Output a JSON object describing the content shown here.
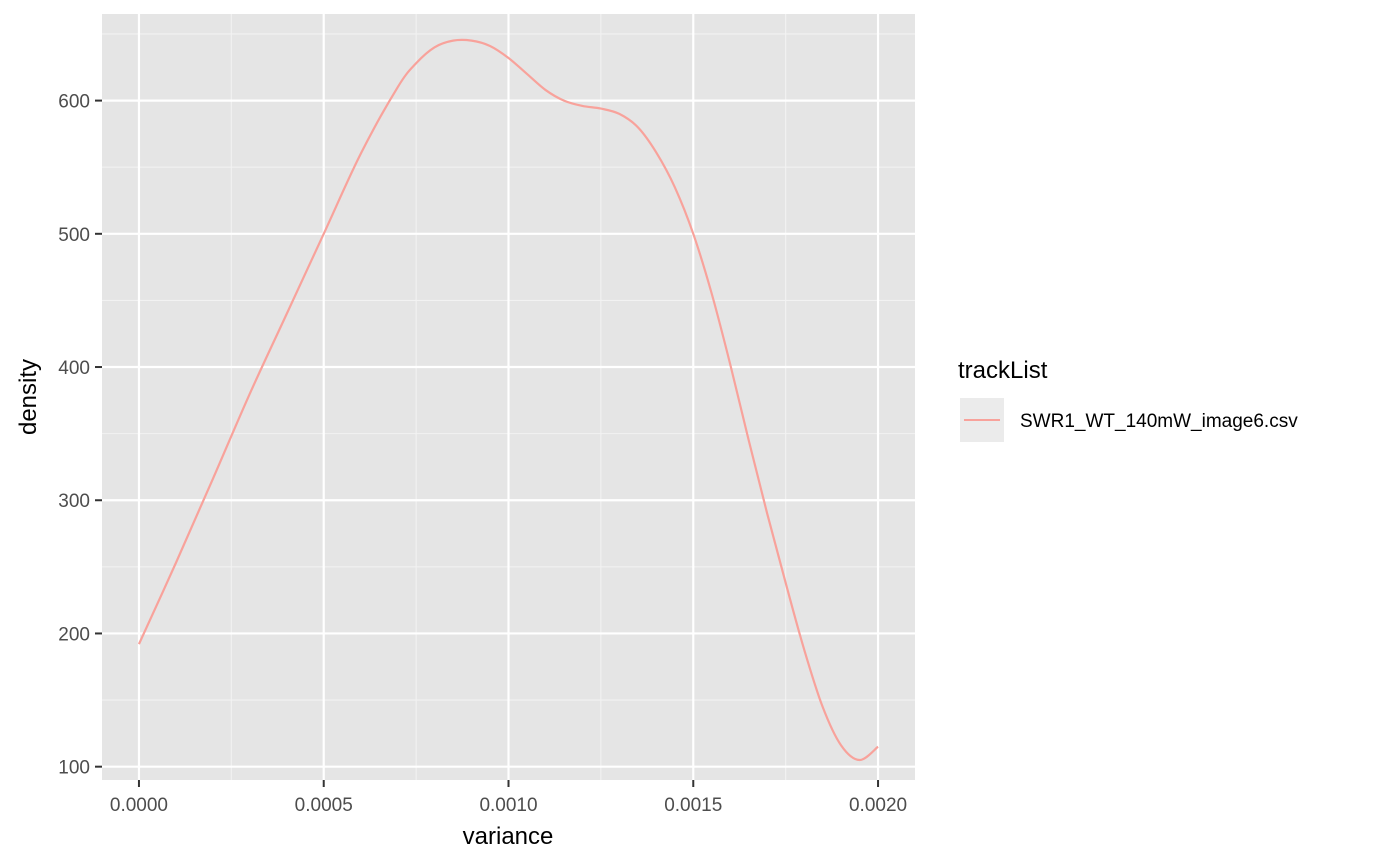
{
  "chart_data": {
    "type": "line",
    "xlabel": "variance",
    "ylabel": "density",
    "xlim": [
      -0.0001,
      0.0021
    ],
    "ylim": [
      90,
      665
    ],
    "x_ticks": [
      0.0,
      0.0005,
      0.001,
      0.0015,
      0.002
    ],
    "x_tick_labels": [
      "0.0000",
      "0.0005",
      "0.0010",
      "0.0015",
      "0.0020"
    ],
    "y_ticks": [
      100,
      200,
      300,
      400,
      500,
      600
    ],
    "y_tick_labels": [
      "100",
      "200",
      "300",
      "400",
      "500",
      "600"
    ],
    "grid": true,
    "legend": {
      "title": "trackList",
      "position": "right"
    },
    "series": [
      {
        "name": "SWR1_WT_140mW_image6.csv",
        "color": "#f8a29b",
        "x": [
          0.0,
          0.0001,
          0.0002,
          0.0003,
          0.0004,
          0.0005,
          0.0006,
          0.0007,
          0.00075,
          0.0008,
          0.00085,
          0.0009,
          0.00095,
          0.001,
          0.00105,
          0.0011,
          0.00115,
          0.0012,
          0.00125,
          0.0013,
          0.00135,
          0.0014,
          0.00145,
          0.0015,
          0.00155,
          0.0016,
          0.00165,
          0.0017,
          0.00175,
          0.0018,
          0.00185,
          0.0019,
          0.00195,
          0.002
        ],
        "y": [
          192,
          253,
          316,
          380,
          440,
          500,
          560,
          610,
          628,
          640,
          645,
          645,
          641,
          632,
          620,
          608,
          600,
          596,
          594,
          590,
          580,
          561,
          535,
          500,
          455,
          402,
          345,
          290,
          238,
          188,
          145,
          116,
          105,
          115
        ]
      }
    ]
  }
}
